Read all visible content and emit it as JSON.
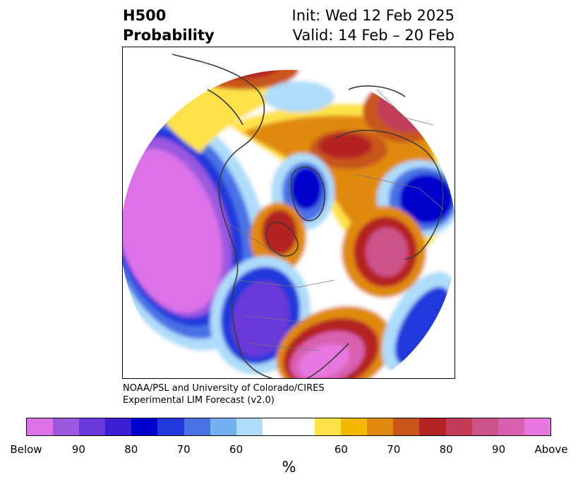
{
  "header": {
    "title_line1": "H500",
    "title_line2": "Probability",
    "init": "Init: Wed 12 Feb 2025",
    "valid": "Valid: 14 Feb – 20 Feb"
  },
  "credit": {
    "line1": "NOAA/PSL and University of Colorado/CIRES",
    "line2": "Experimental LIM Forecast (v2.0)"
  },
  "colorbar": {
    "colors": [
      "#dd72e8",
      "#9b58e0",
      "#6a39d8",
      "#3a1fd2",
      "#0000cc",
      "#2038dc",
      "#4a72e6",
      "#72b0f2",
      "#aedcfa",
      "#ffffff",
      "#ffffff",
      "#ffe24a",
      "#f4b800",
      "#e08a10",
      "#c8561a",
      "#b42424",
      "#c23c58",
      "#cc5288",
      "#d860b0",
      "#e878e0"
    ],
    "ticks": [
      "Below",
      "90",
      "80",
      "70",
      "60",
      "60",
      "70",
      "80",
      "90",
      "Above"
    ],
    "label": "%"
  }
}
